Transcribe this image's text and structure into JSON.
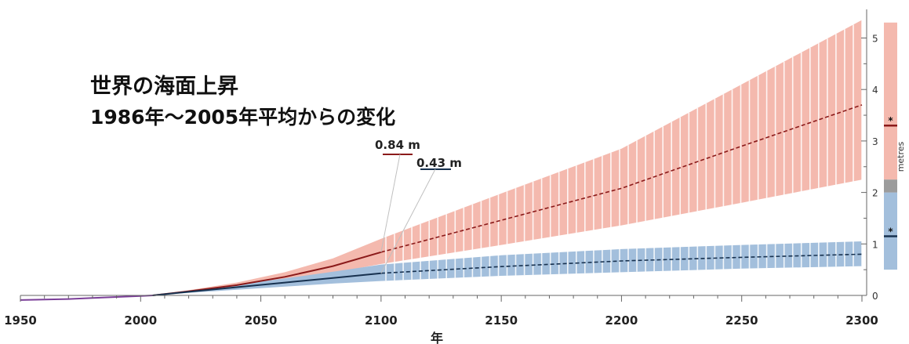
{
  "title": "世界の海面上昇",
  "subtitle": "1986年～2005年平均からの変化",
  "colors": {
    "high_line": "#8b1a1a",
    "high_band": "#f4b9ae",
    "low_line": "#17314f",
    "low_band": "#a3bfdc",
    "historical": "#7b3f98",
    "overlap_bar": "#9c9c9c"
  },
  "chart_data": {
    "type": "line",
    "title": "世界の海面上昇",
    "subtitle": "1986年～2005年平均からの変化",
    "xlabel": "年",
    "ylabel": "metres",
    "xlim": [
      1950,
      2300
    ],
    "ylim": [
      0,
      5.5
    ],
    "x_ticks": [
      "1950",
      "2000",
      "2050",
      "2100",
      "2150",
      "2200",
      "2250",
      "2300"
    ],
    "y_ticks": [
      "0",
      "1",
      "2",
      "3",
      "4",
      "5"
    ],
    "series": [
      {
        "key": "historical",
        "x": [
          1950,
          1960,
          1970,
          1980,
          1990,
          2000,
          2005
        ],
        "y": [
          -0.09,
          -0.08,
          -0.07,
          -0.05,
          -0.03,
          -0.01,
          0.0
        ]
      },
      {
        "key": "high",
        "x": [
          2005,
          2020,
          2040,
          2060,
          2080,
          2100,
          2150,
          2200,
          2250,
          2300
        ],
        "y": [
          0.0,
          0.08,
          0.2,
          0.36,
          0.57,
          0.84,
          1.46,
          2.08,
          2.9,
          3.7
        ],
        "lower": [
          0.0,
          0.06,
          0.16,
          0.28,
          0.44,
          0.61,
          0.98,
          1.36,
          1.8,
          2.25
        ],
        "upper": [
          0.0,
          0.1,
          0.25,
          0.45,
          0.72,
          1.1,
          1.98,
          2.85,
          4.1,
          5.35
        ]
      },
      {
        "key": "low",
        "x": [
          2005,
          2020,
          2040,
          2060,
          2080,
          2100,
          2150,
          2200,
          2250,
          2300
        ],
        "y": [
          0.0,
          0.07,
          0.16,
          0.25,
          0.34,
          0.43,
          0.56,
          0.67,
          0.74,
          0.8
        ],
        "lower": [
          0.0,
          0.05,
          0.11,
          0.17,
          0.23,
          0.28,
          0.38,
          0.45,
          0.52,
          0.57
        ],
        "upper": [
          0.0,
          0.09,
          0.21,
          0.33,
          0.46,
          0.6,
          0.78,
          0.9,
          0.98,
          1.05
        ]
      }
    ],
    "annotations": [
      {
        "key": "high",
        "text": "0.84 m",
        "x": 2100,
        "y": 0.84
      },
      {
        "key": "low",
        "text": "0.43 m",
        "x": 2100,
        "y": 0.43
      }
    ],
    "side_bars": {
      "high": {
        "lower": 2.25,
        "upper": 5.3,
        "median": 3.3,
        "marker": "*"
      },
      "low": {
        "lower": 0.5,
        "upper": 2.0,
        "median": 1.15,
        "marker": "*"
      },
      "overlap": [
        2.0,
        2.25
      ]
    }
  }
}
